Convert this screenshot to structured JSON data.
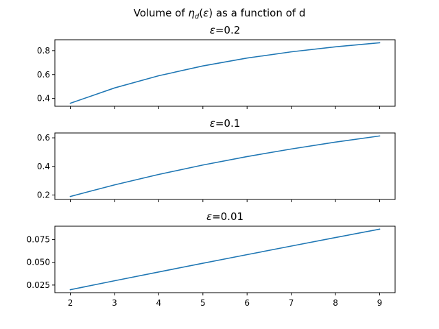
{
  "figure": {
    "suptitle": "Volume of ηd(ε) as a function of d"
  },
  "colors": {
    "line": "#1f77b4"
  },
  "chart_data": [
    {
      "type": "line",
      "title": "ε=0.2",
      "xlabel": "",
      "ylabel": "",
      "x": [
        2,
        3,
        4,
        5,
        6,
        7,
        8,
        9
      ],
      "values": [
        0.36,
        0.488,
        0.59,
        0.672,
        0.738,
        0.79,
        0.832,
        0.866
      ],
      "xlim": [
        1.65,
        9.35
      ],
      "ylim": [
        0.335,
        0.891
      ],
      "yticks": [
        0.4,
        0.6,
        0.8
      ],
      "ytick_labels": [
        "0.4",
        "0.6",
        "0.8"
      ],
      "xticks": [
        2,
        3,
        4,
        5,
        6,
        7,
        8,
        9
      ],
      "show_xtick_labels": false,
      "grid": false
    },
    {
      "type": "line",
      "title": "ε=0.1",
      "xlabel": "",
      "ylabel": "",
      "x": [
        2,
        3,
        4,
        5,
        6,
        7,
        8,
        9
      ],
      "values": [
        0.19,
        0.271,
        0.344,
        0.41,
        0.469,
        0.522,
        0.57,
        0.613
      ],
      "xlim": [
        1.65,
        9.35
      ],
      "ylim": [
        0.169,
        0.634
      ],
      "yticks": [
        0.2,
        0.4,
        0.6
      ],
      "ytick_labels": [
        "0.2",
        "0.4",
        "0.6"
      ],
      "xticks": [
        2,
        3,
        4,
        5,
        6,
        7,
        8,
        9
      ],
      "show_xtick_labels": false,
      "grid": false
    },
    {
      "type": "line",
      "title": "ε=0.01",
      "xlabel": "",
      "ylabel": "",
      "x": [
        2,
        3,
        4,
        5,
        6,
        7,
        8,
        9
      ],
      "values": [
        0.0199,
        0.0297,
        0.0394,
        0.049,
        0.0585,
        0.0679,
        0.0773,
        0.0865
      ],
      "xlim": [
        1.65,
        9.35
      ],
      "ylim": [
        0.0166,
        0.0898
      ],
      "yticks": [
        0.025,
        0.05,
        0.075
      ],
      "ytick_labels": [
        "0.025",
        "0.050",
        "0.075"
      ],
      "xticks": [
        2,
        3,
        4,
        5,
        6,
        7,
        8,
        9
      ],
      "xtick_labels": [
        "2",
        "3",
        "4",
        "5",
        "6",
        "7",
        "8",
        "9"
      ],
      "show_xtick_labels": true,
      "grid": false
    }
  ]
}
